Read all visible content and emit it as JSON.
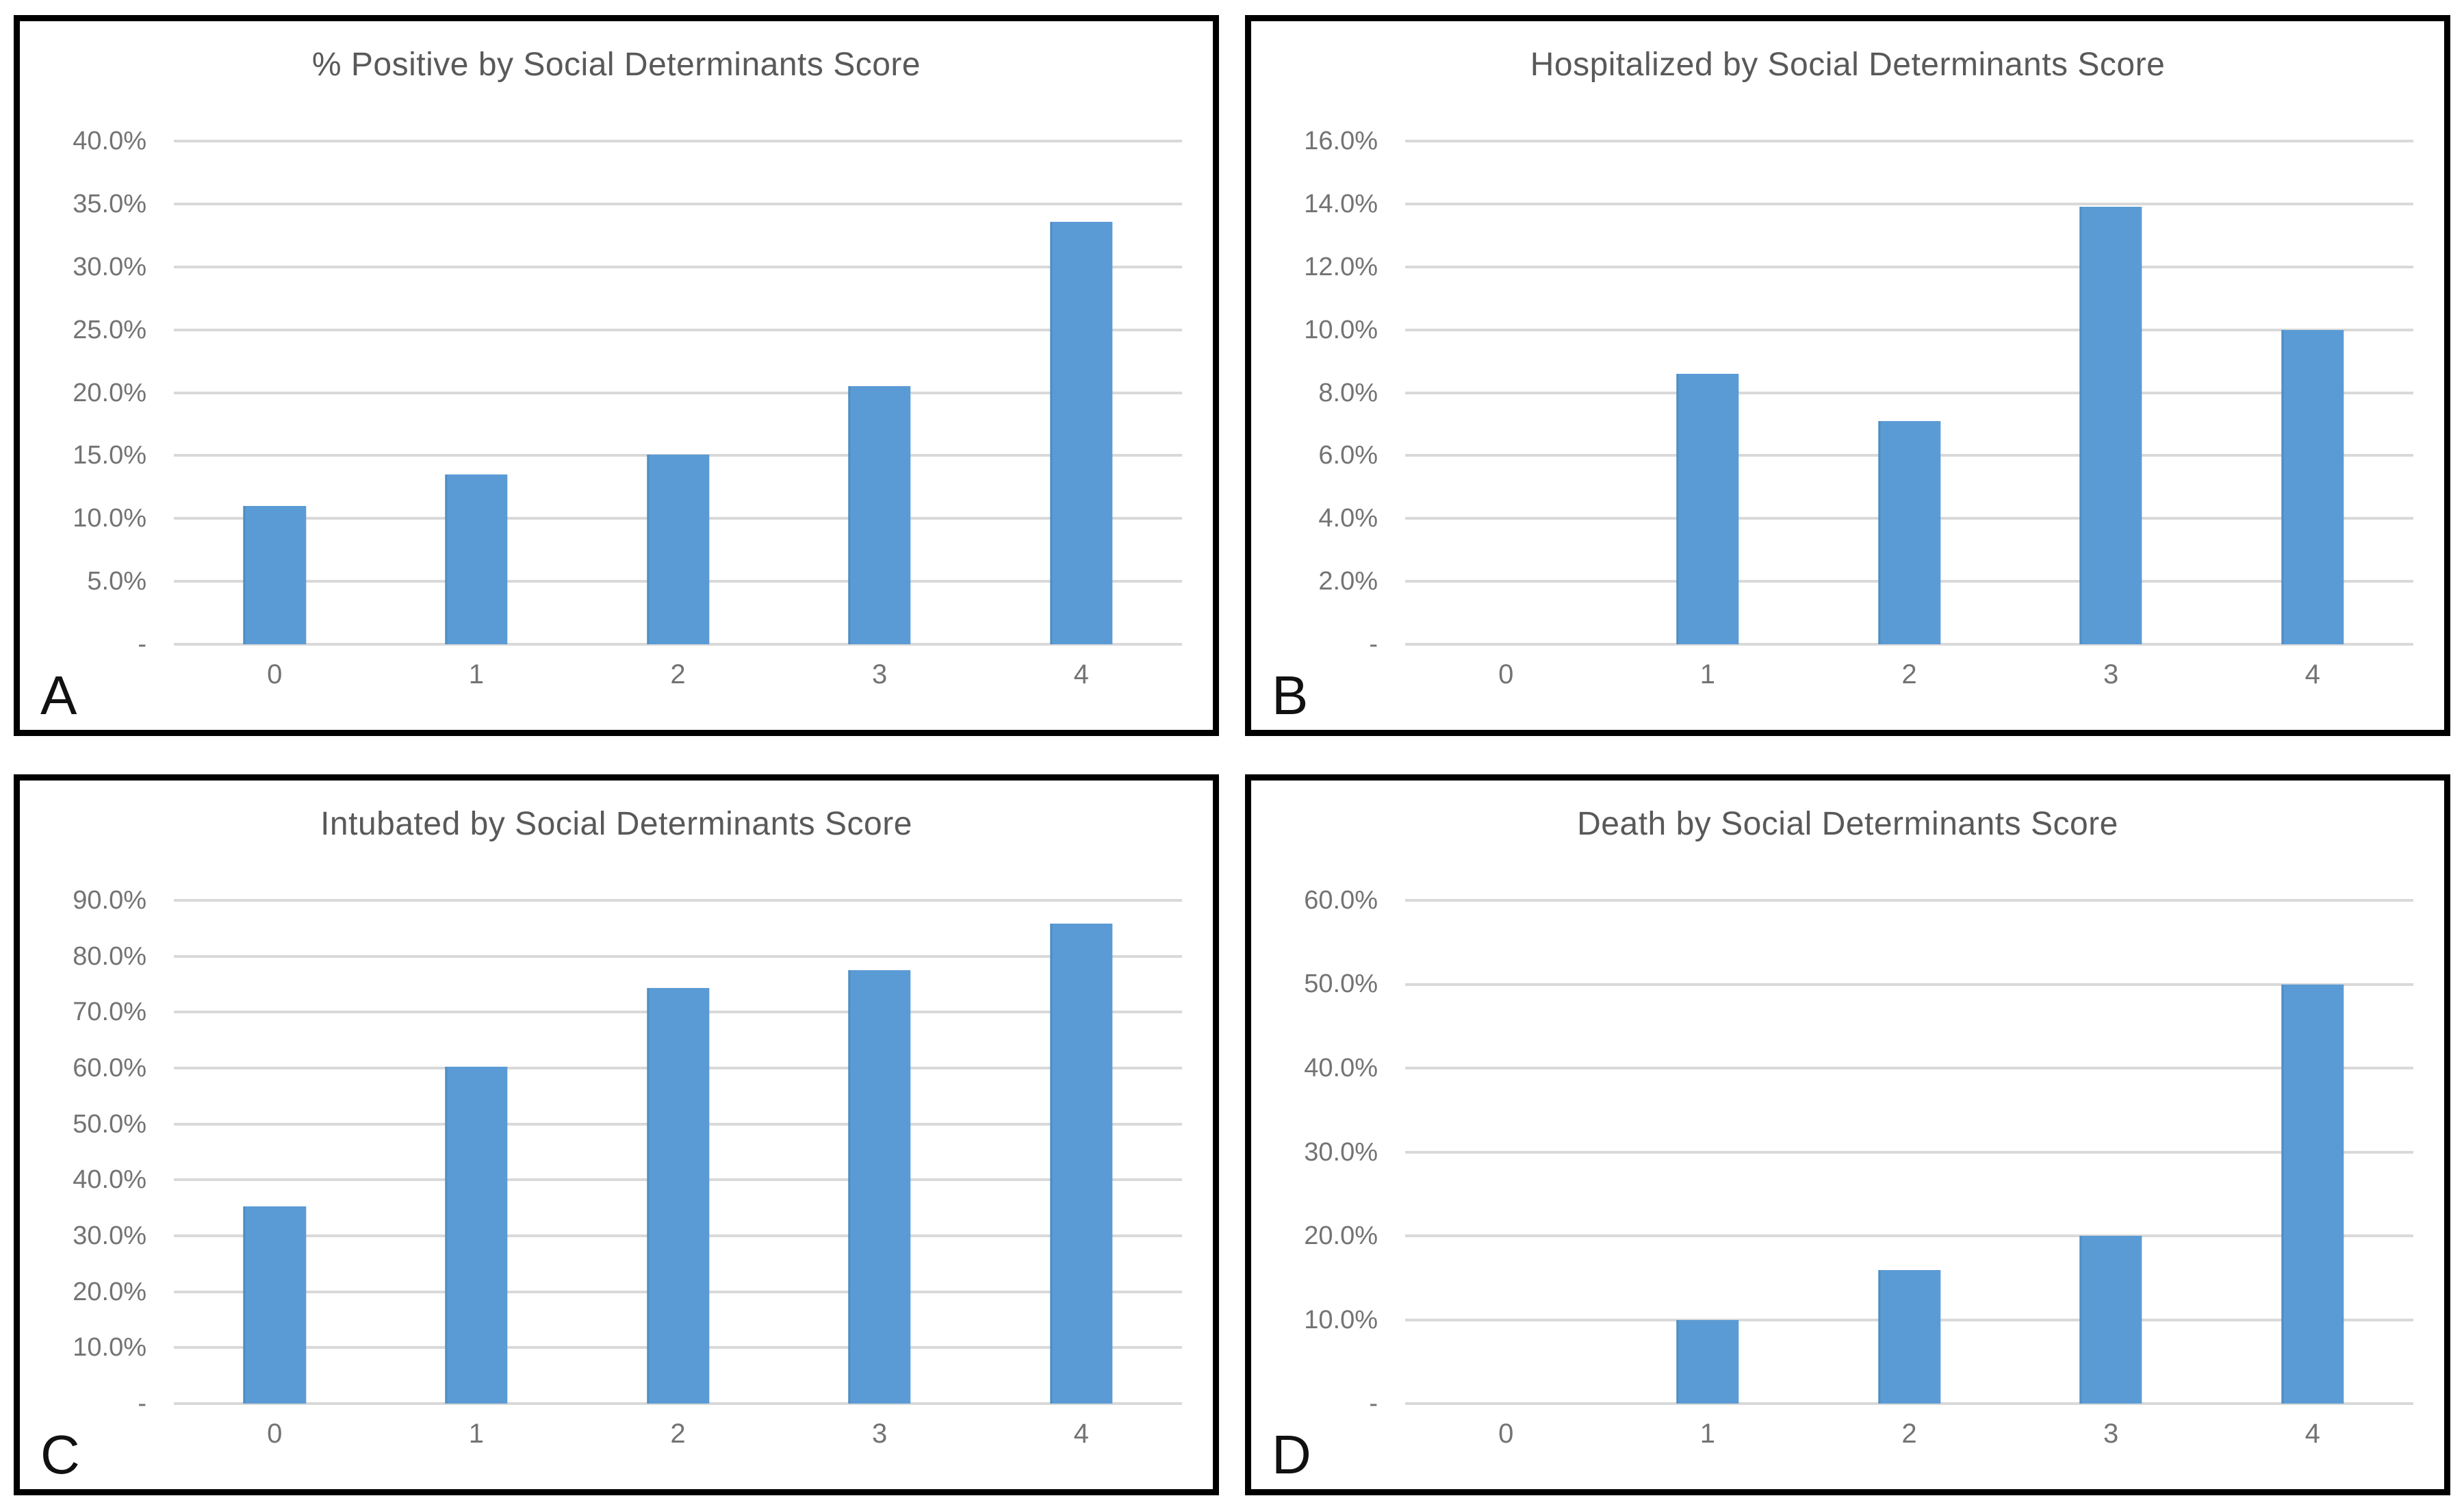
{
  "page": {
    "background": "#ffffff",
    "panel_border_color": "#000000"
  },
  "chart_data": [
    {
      "type": "bar",
      "panel_letter": "A",
      "title": "% Positive by Social Determinants Score",
      "xlabel": "",
      "ylabel": "",
      "categories": [
        "0",
        "1",
        "2",
        "3",
        "4"
      ],
      "values": [
        11.0,
        13.5,
        15.1,
        20.5,
        33.6
      ],
      "unit": "percent",
      "ylim": [
        0,
        40
      ],
      "ystep": 5,
      "tick_labels": [
        "40.0%",
        "35.0%",
        "30.0%",
        "25.0%",
        "20.0%",
        "15.0%",
        "10.0%",
        "5.0%",
        "-"
      ],
      "zero_tick_label": "-",
      "grid": "horizontal",
      "legend": "none",
      "bar_color": "#5B9BD5",
      "gridline_color": "#D9D9D9",
      "title_color": "#595959",
      "tick_color": "#737373"
    },
    {
      "type": "bar",
      "panel_letter": "B",
      "title": "Hospitalized by Social Determinants Score",
      "xlabel": "",
      "ylabel": "",
      "categories": [
        "0",
        "1",
        "2",
        "3",
        "4"
      ],
      "values": [
        0,
        8.6,
        7.1,
        13.9,
        10.0
      ],
      "unit": "percent",
      "ylim": [
        0,
        16
      ],
      "ystep": 2,
      "tick_labels": [
        "16.0%",
        "14.0%",
        "12.0%",
        "10.0%",
        "8.0%",
        "6.0%",
        "4.0%",
        "2.0%",
        "-"
      ],
      "zero_tick_label": "-",
      "grid": "horizontal",
      "legend": "none",
      "bar_color": "#5B9BD5",
      "gridline_color": "#D9D9D9",
      "title_color": "#595959",
      "tick_color": "#737373"
    },
    {
      "type": "bar",
      "panel_letter": "C",
      "title": "Intubated by Social Determinants Score",
      "xlabel": "",
      "ylabel": "",
      "categories": [
        "0",
        "1",
        "2",
        "3",
        "4"
      ],
      "values": [
        35.3,
        60.3,
        74.3,
        77.5,
        85.8
      ],
      "unit": "percent",
      "ylim": [
        0,
        90
      ],
      "ystep": 10,
      "tick_labels": [
        "90.0%",
        "80.0%",
        "70.0%",
        "60.0%",
        "50.0%",
        "40.0%",
        "30.0%",
        "20.0%",
        "10.0%",
        "-"
      ],
      "zero_tick_label": "-",
      "grid": "horizontal",
      "legend": "none",
      "bar_color": "#5B9BD5",
      "gridline_color": "#D9D9D9",
      "title_color": "#595959",
      "tick_color": "#737373"
    },
    {
      "type": "bar",
      "panel_letter": "D",
      "title": "Death by Social Determinants Score",
      "xlabel": "",
      "ylabel": "",
      "categories": [
        "0",
        "1",
        "2",
        "3",
        "4"
      ],
      "values": [
        0,
        10.0,
        15.9,
        20.0,
        50.0
      ],
      "unit": "percent",
      "ylim": [
        0,
        60
      ],
      "ystep": 10,
      "tick_labels": [
        "60.0%",
        "50.0%",
        "40.0%",
        "30.0%",
        "20.0%",
        "10.0%",
        "-"
      ],
      "zero_tick_label": "-",
      "grid": "horizontal",
      "legend": "none",
      "bar_color": "#5B9BD5",
      "gridline_color": "#D9D9D9",
      "title_color": "#595959",
      "tick_color": "#737373"
    }
  ]
}
